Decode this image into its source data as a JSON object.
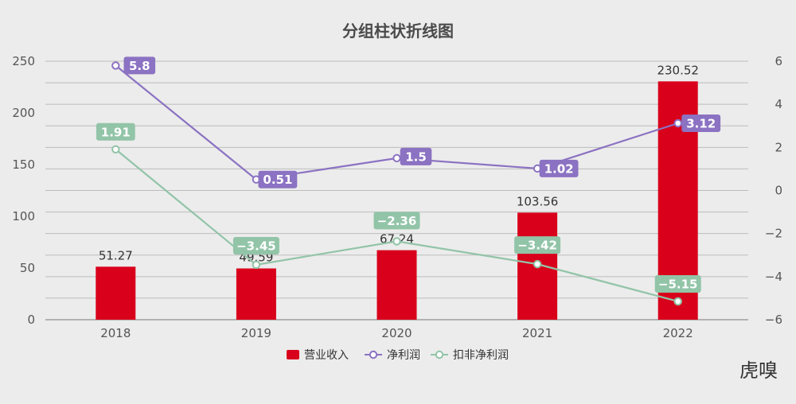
{
  "chart_data": {
    "type": "bar",
    "title": "分组柱状折线图",
    "categories": [
      "2018",
      "2019",
      "2020",
      "2021",
      "2022"
    ],
    "y_left": {
      "ticks": [
        "0",
        "50",
        "100",
        "150",
        "200",
        "250"
      ],
      "ylim": [
        0,
        250
      ]
    },
    "y_right": {
      "ticks": [
        "−6",
        "−4",
        "−2",
        "0",
        "2",
        "4",
        "6"
      ],
      "ylim": [
        -6,
        6
      ]
    },
    "grid": true,
    "legend_position": "bottom-center",
    "series": [
      {
        "name": "营业收入",
        "type": "bar",
        "axis": "left",
        "color": "#d9001b",
        "values": [
          51.27,
          49.59,
          67.24,
          103.56,
          230.52
        ],
        "labels": [
          "51.27",
          "49.59",
          "67.24",
          "103.56",
          "230.52"
        ]
      },
      {
        "name": "净利润",
        "type": "line",
        "axis": "right",
        "color": "#8b72c2",
        "values": [
          5.8,
          0.51,
          1.5,
          1.02,
          3.12
        ],
        "labels": [
          "5.8",
          "0.51",
          "1.5",
          "1.02",
          "3.12"
        ]
      },
      {
        "name": "扣非净利润",
        "type": "line",
        "axis": "right",
        "color": "#92c4a8",
        "values": [
          1.91,
          -3.45,
          -2.36,
          -3.42,
          -5.15
        ],
        "labels": [
          "1.91",
          "−3.45",
          "−2.36",
          "−3.42",
          "−5.15"
        ]
      }
    ]
  },
  "watermark": "虎嗅"
}
